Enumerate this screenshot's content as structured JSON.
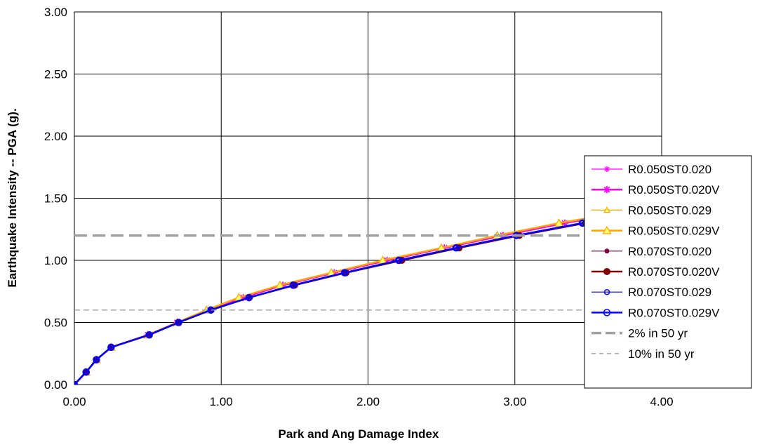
{
  "chart_data": {
    "type": "line",
    "xlabel": "Park and Ang Damage Index",
    "ylabel": "Earthquake Intensity -- PGA (g).",
    "xlim": [
      0,
      4
    ],
    "ylim": [
      0,
      3
    ],
    "x_ticks": [
      "0.00",
      "1.00",
      "2.00",
      "3.00",
      "4.00"
    ],
    "y_ticks": [
      "0.00",
      "0.50",
      "1.00",
      "1.50",
      "2.00",
      "2.50",
      "3.00"
    ],
    "grid": true,
    "legend_position": "right",
    "series": [
      {
        "name": "R0.050ST0.020",
        "color": "#ff00ff",
        "width": 1.2,
        "marker": "star",
        "dash": "",
        "points": [
          [
            0,
            0
          ],
          [
            0.08,
            0.1
          ],
          [
            0.15,
            0.2
          ],
          [
            0.25,
            0.3
          ],
          [
            0.5,
            0.4
          ],
          [
            0.7,
            0.5
          ],
          [
            0.92,
            0.6
          ],
          [
            1.15,
            0.7
          ],
          [
            1.42,
            0.8
          ],
          [
            1.77,
            0.9
          ],
          [
            2.13,
            1.0
          ],
          [
            2.52,
            1.1
          ],
          [
            2.92,
            1.2
          ],
          [
            3.34,
            1.3
          ],
          [
            3.85,
            1.4
          ]
        ]
      },
      {
        "name": "R0.050ST0.020V",
        "color": "#ff00ff",
        "width": 2.5,
        "marker": "star",
        "dash": "",
        "points": [
          [
            0,
            0
          ],
          [
            0.08,
            0.1
          ],
          [
            0.15,
            0.2
          ],
          [
            0.25,
            0.3
          ],
          [
            0.5,
            0.4
          ],
          [
            0.7,
            0.5
          ],
          [
            0.92,
            0.6
          ],
          [
            1.15,
            0.7
          ],
          [
            1.42,
            0.8
          ],
          [
            1.77,
            0.9
          ],
          [
            2.13,
            1.0
          ],
          [
            2.52,
            1.1
          ],
          [
            2.92,
            1.2
          ],
          [
            3.34,
            1.3
          ],
          [
            3.85,
            1.4
          ]
        ]
      },
      {
        "name": "R0.050ST0.029",
        "color": "#ffa500",
        "width": 1.2,
        "marker": "triangle",
        "dash": "",
        "points": [
          [
            0,
            0
          ],
          [
            0.08,
            0.1
          ],
          [
            0.15,
            0.2
          ],
          [
            0.25,
            0.3
          ],
          [
            0.5,
            0.4
          ],
          [
            0.7,
            0.5
          ],
          [
            0.9,
            0.6
          ],
          [
            1.12,
            0.7
          ],
          [
            1.4,
            0.8
          ],
          [
            1.75,
            0.9
          ],
          [
            2.1,
            1.0
          ],
          [
            2.5,
            1.1
          ],
          [
            2.88,
            1.2
          ],
          [
            3.3,
            1.3
          ],
          [
            3.8,
            1.4
          ]
        ]
      },
      {
        "name": "R0.050ST0.029V",
        "color": "#ffa500",
        "width": 2.5,
        "marker": "triangle",
        "dash": "",
        "points": [
          [
            0,
            0
          ],
          [
            0.08,
            0.1
          ],
          [
            0.15,
            0.2
          ],
          [
            0.25,
            0.3
          ],
          [
            0.5,
            0.4
          ],
          [
            0.7,
            0.5
          ],
          [
            0.9,
            0.6
          ],
          [
            1.12,
            0.7
          ],
          [
            1.4,
            0.8
          ],
          [
            1.75,
            0.9
          ],
          [
            2.1,
            1.0
          ],
          [
            2.5,
            1.1
          ],
          [
            2.88,
            1.2
          ],
          [
            3.3,
            1.3
          ],
          [
            3.8,
            1.4
          ]
        ]
      },
      {
        "name": "R0.070ST0.020",
        "color": "#800040",
        "width": 1.2,
        "marker": "dot",
        "dash": "",
        "points": [
          [
            0,
            0
          ],
          [
            0.08,
            0.1
          ],
          [
            0.15,
            0.2
          ],
          [
            0.25,
            0.3
          ],
          [
            0.51,
            0.4
          ],
          [
            0.71,
            0.5
          ],
          [
            0.93,
            0.6
          ],
          [
            1.19,
            0.7
          ],
          [
            1.5,
            0.8
          ],
          [
            1.85,
            0.9
          ],
          [
            2.23,
            1.0
          ],
          [
            2.62,
            1.1
          ],
          [
            3.03,
            1.2
          ],
          [
            3.48,
            1.3
          ],
          [
            3.97,
            1.4
          ]
        ]
      },
      {
        "name": "R0.070ST0.020V",
        "color": "#800000",
        "width": 2.5,
        "marker": "dot",
        "dash": "",
        "points": [
          [
            0,
            0
          ],
          [
            0.08,
            0.1
          ],
          [
            0.15,
            0.2
          ],
          [
            0.25,
            0.3
          ],
          [
            0.51,
            0.4
          ],
          [
            0.71,
            0.5
          ],
          [
            0.93,
            0.6
          ],
          [
            1.19,
            0.7
          ],
          [
            1.5,
            0.8
          ],
          [
            1.85,
            0.9
          ],
          [
            2.23,
            1.0
          ],
          [
            2.62,
            1.1
          ],
          [
            3.03,
            1.2
          ],
          [
            3.48,
            1.3
          ],
          [
            3.97,
            1.4
          ]
        ]
      },
      {
        "name": "R0.070ST0.029",
        "color": "#0000ff",
        "width": 1.2,
        "marker": "circle",
        "dash": "",
        "points": [
          [
            0,
            0
          ],
          [
            0.08,
            0.1
          ],
          [
            0.15,
            0.2
          ],
          [
            0.25,
            0.3
          ],
          [
            0.51,
            0.4
          ],
          [
            0.71,
            0.5
          ],
          [
            0.93,
            0.6
          ],
          [
            1.19,
            0.7
          ],
          [
            1.49,
            0.8
          ],
          [
            1.84,
            0.9
          ],
          [
            2.21,
            1.0
          ],
          [
            2.6,
            1.1
          ],
          [
            3.01,
            1.2
          ],
          [
            3.46,
            1.3
          ],
          [
            3.95,
            1.4
          ]
        ]
      },
      {
        "name": "R0.070ST0.029V",
        "color": "#0000ff",
        "width": 2.5,
        "marker": "circle",
        "dash": "",
        "points": [
          [
            0,
            0
          ],
          [
            0.08,
            0.1
          ],
          [
            0.15,
            0.2
          ],
          [
            0.25,
            0.3
          ],
          [
            0.51,
            0.4
          ],
          [
            0.71,
            0.5
          ],
          [
            0.93,
            0.6
          ],
          [
            1.19,
            0.7
          ],
          [
            1.49,
            0.8
          ],
          [
            1.84,
            0.9
          ],
          [
            2.21,
            1.0
          ],
          [
            2.6,
            1.1
          ],
          [
            3.01,
            1.2
          ],
          [
            3.46,
            1.3
          ],
          [
            3.95,
            1.4
          ]
        ]
      },
      {
        "name": "2% in 50 yr",
        "color": "#a0a0a0",
        "width": 3.5,
        "marker": "none",
        "dash": "18,8",
        "points": [
          [
            0,
            1.2
          ],
          [
            4.0,
            1.2
          ]
        ]
      },
      {
        "name": "10% in 50 yr",
        "color": "#a0a0a0",
        "width": 1.3,
        "marker": "none",
        "dash": "8,5",
        "points": [
          [
            0,
            0.6
          ],
          [
            4.0,
            0.6
          ]
        ]
      }
    ]
  }
}
